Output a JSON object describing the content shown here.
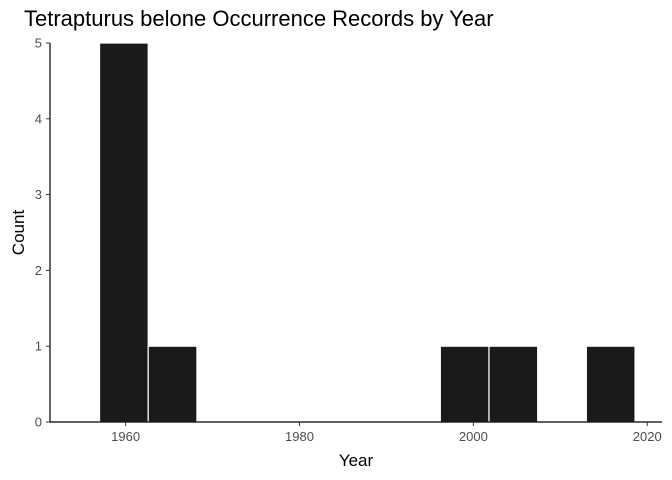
{
  "chart_data": {
    "type": "bar",
    "title": "Tetrapturus belone Occurrence Records by Year",
    "xlabel": "Year",
    "ylabel": "Count",
    "bins": [
      {
        "start": 1957.0,
        "end": 1962.6,
        "count": 5
      },
      {
        "start": 1962.6,
        "end": 1968.2,
        "count": 1
      },
      {
        "start": 1968.2,
        "end": 1973.8,
        "count": 0
      },
      {
        "start": 1973.8,
        "end": 1979.4,
        "count": 0
      },
      {
        "start": 1979.4,
        "end": 1985.0,
        "count": 0
      },
      {
        "start": 1985.0,
        "end": 1990.6,
        "count": 0
      },
      {
        "start": 1990.6,
        "end": 1996.2,
        "count": 0
      },
      {
        "start": 1996.2,
        "end": 2001.8,
        "count": 1
      },
      {
        "start": 2001.8,
        "end": 2007.4,
        "count": 1
      },
      {
        "start": 2007.4,
        "end": 2013.0,
        "count": 0
      },
      {
        "start": 2013.0,
        "end": 2018.6,
        "count": 1
      }
    ],
    "xlim": [
      1951.3,
      2021.7
    ],
    "ylim": [
      0,
      5
    ],
    "xticks": [
      "1960",
      "1980",
      "2000",
      "2020"
    ],
    "yticks": [
      "0",
      "1",
      "2",
      "3",
      "4",
      "5"
    ],
    "bar_color": "#1a1a1a",
    "bar_edge_color": "#ffffff",
    "axis_color": "#000000",
    "grid": false,
    "legend": "none"
  }
}
